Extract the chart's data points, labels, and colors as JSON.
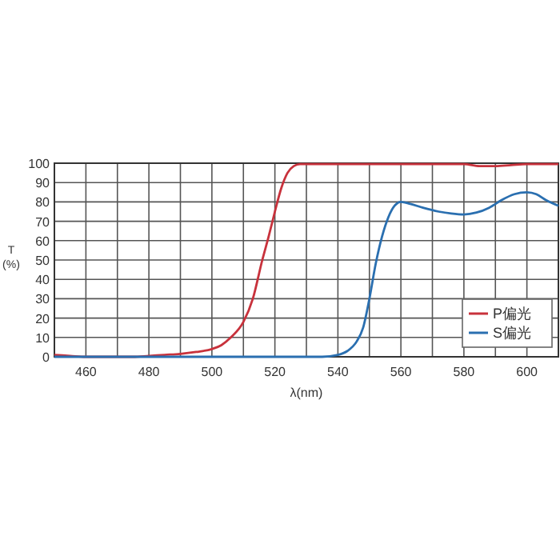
{
  "chart_data": {
    "type": "line",
    "xlabel": "λ(nm)",
    "ylabel": "T\n(%)",
    "xlim": [
      450,
      610
    ],
    "ylim": [
      0,
      100
    ],
    "xticks": [
      {
        "value": 450,
        "label": null
      },
      460,
      {
        "value": 470,
        "label": null
      },
      480,
      {
        "value": 490,
        "label": null
      },
      500,
      {
        "value": 510,
        "label": null
      },
      520,
      {
        "value": 530,
        "label": null
      },
      540,
      {
        "value": 550,
        "label": null
      },
      560,
      {
        "value": 570,
        "label": null
      },
      580,
      {
        "value": 590,
        "label": null
      },
      600,
      {
        "value": 610,
        "label": null
      }
    ],
    "yticks": [
      0,
      10,
      20,
      30,
      40,
      50,
      60,
      70,
      80,
      90,
      100
    ],
    "grid": true,
    "legend": "bottom right",
    "marker": "none",
    "line_style": "solid",
    "series": [
      {
        "name": "P偏光",
        "color": "#c8323c",
        "x": [
          450,
          455,
          460,
          465,
          470,
          475,
          480,
          485,
          490,
          495,
          500,
          503,
          506,
          510,
          513,
          516,
          518,
          520,
          522,
          524,
          526,
          528,
          530,
          540,
          550,
          560,
          570,
          580,
          585,
          590,
          595,
          600,
          605,
          610
        ],
        "values": [
          1,
          0.5,
          0,
          0,
          0,
          0,
          0.5,
          1,
          1.5,
          2.5,
          4,
          6,
          10,
          18,
          30,
          50,
          62,
          75,
          87,
          95,
          98.5,
          99.5,
          99.5,
          99.5,
          99.5,
          99.5,
          99.5,
          99.5,
          98.5,
          98.5,
          99,
          99.5,
          99.5,
          99.5
        ]
      },
      {
        "name": "S偏光",
        "color": "#2a6fb0",
        "x": [
          450,
          480,
          510,
          535,
          540,
          543,
          546,
          548,
          550,
          552,
          554,
          556,
          558,
          560,
          563,
          567,
          572,
          576,
          580,
          584,
          588,
          592,
          596,
          600,
          603,
          606,
          610
        ],
        "values": [
          0,
          0,
          0,
          0,
          1,
          3,
          8,
          15,
          30,
          48,
          62,
          72,
          78,
          80,
          79,
          77,
          75,
          74,
          73.5,
          74.5,
          77,
          81,
          84,
          85,
          84,
          81,
          78
        ]
      }
    ]
  }
}
